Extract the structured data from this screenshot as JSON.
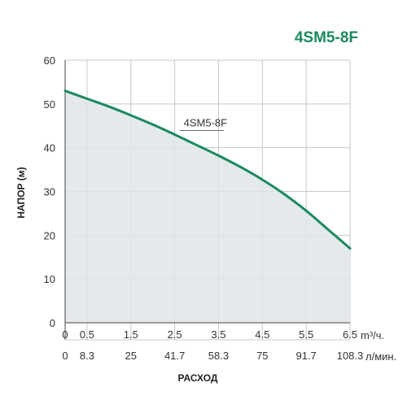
{
  "chart_data": {
    "type": "area",
    "title": "4SM5-8F",
    "xlabel": "РАСХОД",
    "ylabel": "НАПОР (м)",
    "x_unit_primary": "m³/ч.",
    "x_unit_secondary": "л/мин.",
    "xlim": [
      0,
      6.5
    ],
    "ylim": [
      0,
      60
    ],
    "x_ticks": [
      "0",
      "0.5",
      "1.5",
      "2.5",
      "3.5",
      "4.5",
      "5.5",
      "6.5"
    ],
    "x_tick_values": [
      0,
      0.5,
      1.5,
      2.5,
      3.5,
      4.5,
      5.5,
      6.5
    ],
    "x_ticks_secondary": [
      "0",
      "8.3",
      "25",
      "41.7",
      "58.3",
      "75",
      "91.7",
      "108.3"
    ],
    "y_ticks": [
      "0",
      "10",
      "20",
      "30",
      "40",
      "50",
      "60"
    ],
    "y_tick_values": [
      0,
      10,
      20,
      30,
      40,
      50,
      60
    ],
    "grid": true,
    "series": [
      {
        "name": "4SM5-8F",
        "x": [
          0,
          0.5,
          1.0,
          1.5,
          2.0,
          2.5,
          3.0,
          3.5,
          4.0,
          4.5,
          5.0,
          5.5,
          6.0,
          6.5
        ],
        "y": [
          53,
          51.2,
          49.4,
          47.4,
          45.3,
          43,
          40.6,
          38.2,
          35.6,
          32.7,
          29.4,
          25.6,
          21.3,
          17
        ]
      }
    ],
    "annotations": [
      {
        "text": "4SM5-8F",
        "x": 2.5,
        "y": 43
      }
    ],
    "colors": {
      "line": "#1a8a5c",
      "fill": "#dfe5e9",
      "title": "#1a8a5c",
      "grid": "#c8c8c8",
      "axis": "#444444"
    }
  }
}
